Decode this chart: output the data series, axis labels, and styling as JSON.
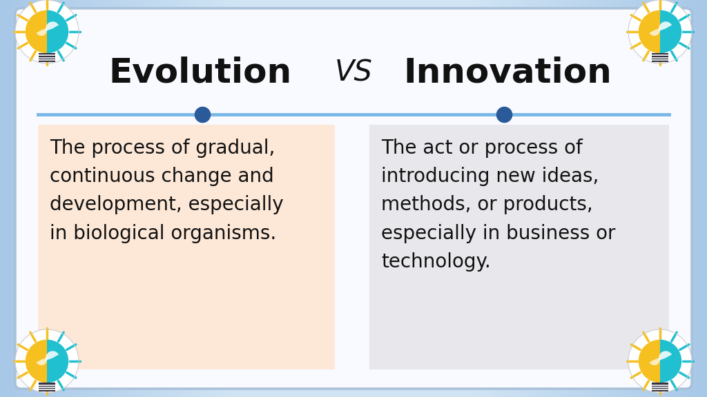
{
  "title_left": "Evolution",
  "title_vs": "VS",
  "title_right": "Innovation",
  "left_text": "The process of gradual,\ncontinuous change and\ndevelopment, especially\nin biological organisms.",
  "right_text": "The act or process of\nintroducing new ideas,\nmethods, or products,\nespecially in business or\ntechnology.",
  "bg_gradient_left": "#b8d4e8",
  "bg_gradient_right": "#c8dff0",
  "inner_bg_color": "#f8faff",
  "left_box_color": "#fde8d8",
  "right_box_color": "#e8e8ec",
  "line_color": "#7ab8e8",
  "dot_color": "#2a5a9a",
  "title_fontsize": 36,
  "vs_fontsize": 30,
  "text_fontsize": 20,
  "border_color": "#a8c0d8",
  "icon_yellow": "#f5c020",
  "icon_teal": "#20c0d0",
  "icon_white": "#ffffff",
  "icon_dark": "#333344"
}
